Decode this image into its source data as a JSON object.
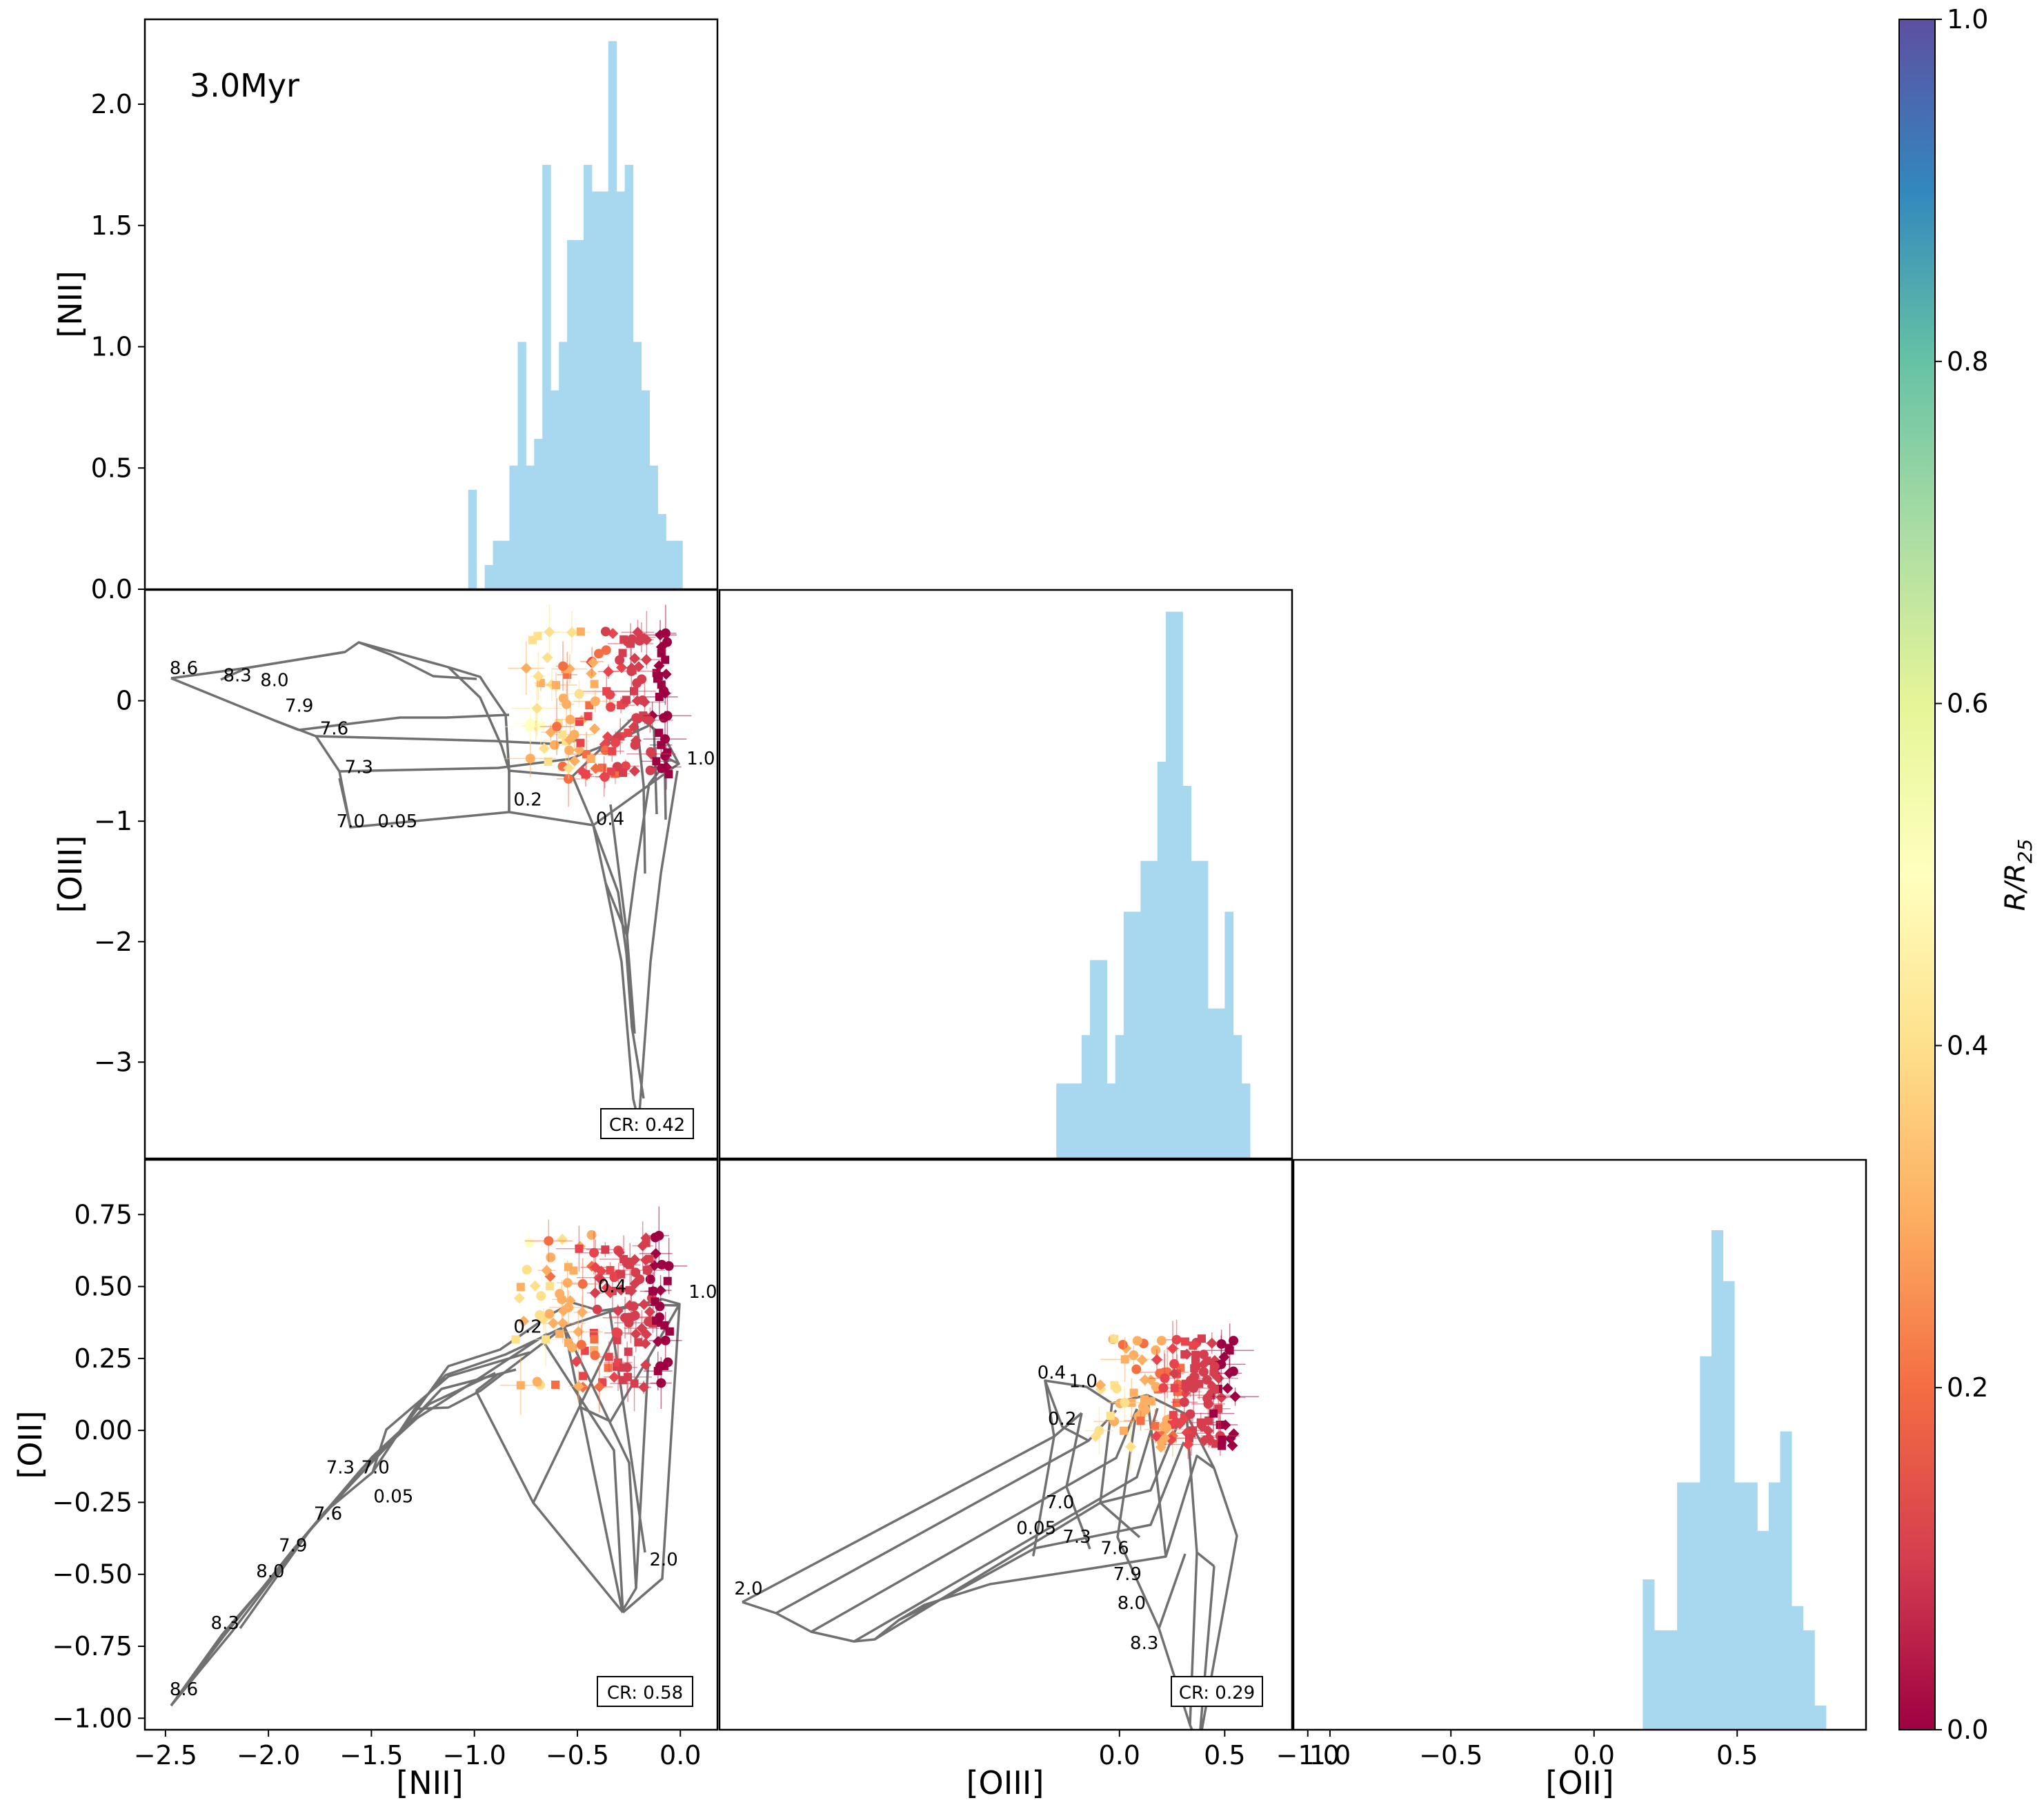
{
  "figure": {
    "age_label": "3.0Myr",
    "colorbar_label": "R/R25",
    "colorbar_ticks": [
      "0.0",
      "0.2",
      "0.4",
      "0.6",
      "0.8",
      "1.0"
    ],
    "colorbar_range": [
      0,
      1
    ]
  },
  "chart_data": [
    {
      "id": "nii-hist",
      "type": "bar",
      "panel": "top-left",
      "ylabel": "[NII]",
      "ylim": [
        0,
        2.35
      ],
      "yticks": [
        "0.0",
        "0.5",
        "1.0",
        "1.5",
        "2.0"
      ],
      "xlim": [
        -2.6,
        0.18
      ],
      "bin_start": -1.03,
      "bin_width": 0.04,
      "values": [
        0.41,
        0,
        0.1,
        0.2,
        0.2,
        0.51,
        1.02,
        0.51,
        0.62,
        1.75,
        0.82,
        1.02,
        1.44,
        1.44,
        1.75,
        1.64,
        1.64,
        2.26,
        1.64,
        1.75,
        1.02,
        0.82,
        0.51,
        0.31,
        0.2,
        0.2
      ],
      "color": "#a8d8f0"
    },
    {
      "id": "oiii-nii",
      "type": "scatter",
      "panel": "middle-left",
      "ylabel": "[OIII]",
      "xlim": [
        -2.6,
        0.18
      ],
      "ylim": [
        -3.8,
        0.92
      ],
      "yticks": [
        "−3",
        "−2",
        "−1",
        "0"
      ],
      "badge": "CR: 0.42",
      "grid_labels": [
        {
          "t": "8.6",
          "x": -2.48,
          "y": 0.22
        },
        {
          "t": "8.3",
          "x": -2.22,
          "y": 0.16
        },
        {
          "t": "8.0",
          "x": -2.04,
          "y": 0.12
        },
        {
          "t": "7.9",
          "x": -1.92,
          "y": -0.09
        },
        {
          "t": "7.6",
          "x": -1.75,
          "y": -0.28
        },
        {
          "t": "7.3",
          "x": -1.63,
          "y": -0.6
        },
        {
          "t": "7.0",
          "x": -1.67,
          "y": -1.05
        },
        {
          "t": "0.05",
          "x": -1.47,
          "y": -1.05
        },
        {
          "t": "0.2",
          "x": -0.81,
          "y": -0.87
        },
        {
          "t": "0.4",
          "x": -0.41,
          "y": -1.03
        },
        {
          "t": "1.0",
          "x": 0.03,
          "y": -0.53
        }
      ],
      "point_ranges": {
        "x": [
          -0.9,
          -0.05
        ],
        "y": [
          -0.65,
          0.6
        ]
      }
    },
    {
      "id": "oiii-hist",
      "type": "bar",
      "panel": "middle-center",
      "xlim": [
        -1.9,
        0.82
      ],
      "ylim": [
        0,
        2.35
      ],
      "bin_start": -0.3,
      "bin_width": 0.04,
      "values": [
        0.31,
        0.31,
        0.31,
        0.51,
        0.82,
        0.82,
        0.31,
        0.51,
        1.02,
        1.02,
        1.23,
        1.23,
        1.64,
        2.26,
        2.26,
        1.54,
        1.23,
        1.23,
        0.62,
        0.62,
        1.02,
        0.51,
        0.31
      ],
      "color": "#a8d8f0"
    },
    {
      "id": "oii-nii",
      "type": "scatter",
      "panel": "bottom-left",
      "ylabel": "[OII]",
      "xlabel": "[NII]",
      "xlim": [
        -2.6,
        0.18
      ],
      "ylim": [
        -1.04,
        0.94
      ],
      "yticks": [
        "−1.00",
        "−0.75",
        "−0.50",
        "−0.25",
        "0.00",
        "0.25",
        "0.50",
        "0.75"
      ],
      "xticks": [
        "−2.5",
        "−2.0",
        "−1.5",
        "−1.0",
        "−0.5",
        "0.0"
      ],
      "badge": "CR: 0.58",
      "grid_labels": [
        {
          "t": "8.6",
          "x": -2.48,
          "y": -0.92
        },
        {
          "t": "8.3",
          "x": -2.28,
          "y": -0.69
        },
        {
          "t": "8.0",
          "x": -2.06,
          "y": -0.51
        },
        {
          "t": "7.9",
          "x": -1.95,
          "y": -0.42
        },
        {
          "t": "7.6",
          "x": -1.78,
          "y": -0.31
        },
        {
          "t": "7.3",
          "x": -1.72,
          "y": -0.15
        },
        {
          "t": "7.0",
          "x": -1.55,
          "y": -0.15
        },
        {
          "t": "0.05",
          "x": -1.49,
          "y": -0.25
        },
        {
          "t": "0.2",
          "x": -0.81,
          "y": 0.34
        },
        {
          "t": "0.4",
          "x": -0.4,
          "y": 0.48
        },
        {
          "t": "1.0",
          "x": 0.04,
          "y": 0.46
        },
        {
          "t": "2.0",
          "x": -0.15,
          "y": -0.47
        }
      ],
      "point_ranges": {
        "x": [
          -1.0,
          -0.05
        ],
        "y": [
          0.15,
          0.68
        ]
      }
    },
    {
      "id": "oii-oiii",
      "type": "scatter",
      "panel": "bottom-center",
      "xlabel": "[OIII]",
      "xlim": [
        -1.9,
        0.82
      ],
      "ylim": [
        -1.04,
        0.94
      ],
      "xticks": [
        "0.0",
        "0.5",
        "1.0"
      ],
      "badge": "CR: 0.29",
      "grid_labels": [
        {
          "t": "2.0",
          "x": -1.83,
          "y": -0.57
        },
        {
          "t": "0.4",
          "x": -0.39,
          "y": 0.18
        },
        {
          "t": "1.0",
          "x": -0.24,
          "y": 0.15
        },
        {
          "t": "0.2",
          "x": -0.34,
          "y": 0.02
        },
        {
          "t": "7.0",
          "x": -0.35,
          "y": -0.27
        },
        {
          "t": "0.05",
          "x": -0.49,
          "y": -0.36
        },
        {
          "t": "7.3",
          "x": -0.27,
          "y": -0.39
        },
        {
          "t": "7.6",
          "x": -0.09,
          "y": -0.43
        },
        {
          "t": "7.9",
          "x": -0.03,
          "y": -0.52
        },
        {
          "t": "8.0",
          "x": -0.01,
          "y": -0.62
        },
        {
          "t": "8.3",
          "x": 0.05,
          "y": -0.76
        }
      ],
      "point_ranges": {
        "x": [
          -0.25,
          0.55
        ],
        "y": [
          -0.06,
          0.32
        ]
      }
    },
    {
      "id": "oii-hist",
      "type": "bar",
      "panel": "bottom-right",
      "xlabel": "[OII]",
      "xlim": [
        -1.05,
        0.95
      ],
      "ylim": [
        0,
        2.35
      ],
      "xticks": [
        "−1.0",
        "−0.5",
        "0.0",
        "0.5"
      ],
      "bin_start": 0.17,
      "bin_width": 0.04,
      "values": [
        0.62,
        0.41,
        0.41,
        1.02,
        1.02,
        1.54,
        2.06,
        1.85,
        1.02,
        1.02,
        0.82,
        1.02,
        1.23,
        0.51,
        0.41,
        0.1
      ],
      "color": "#a8d8f0"
    }
  ]
}
